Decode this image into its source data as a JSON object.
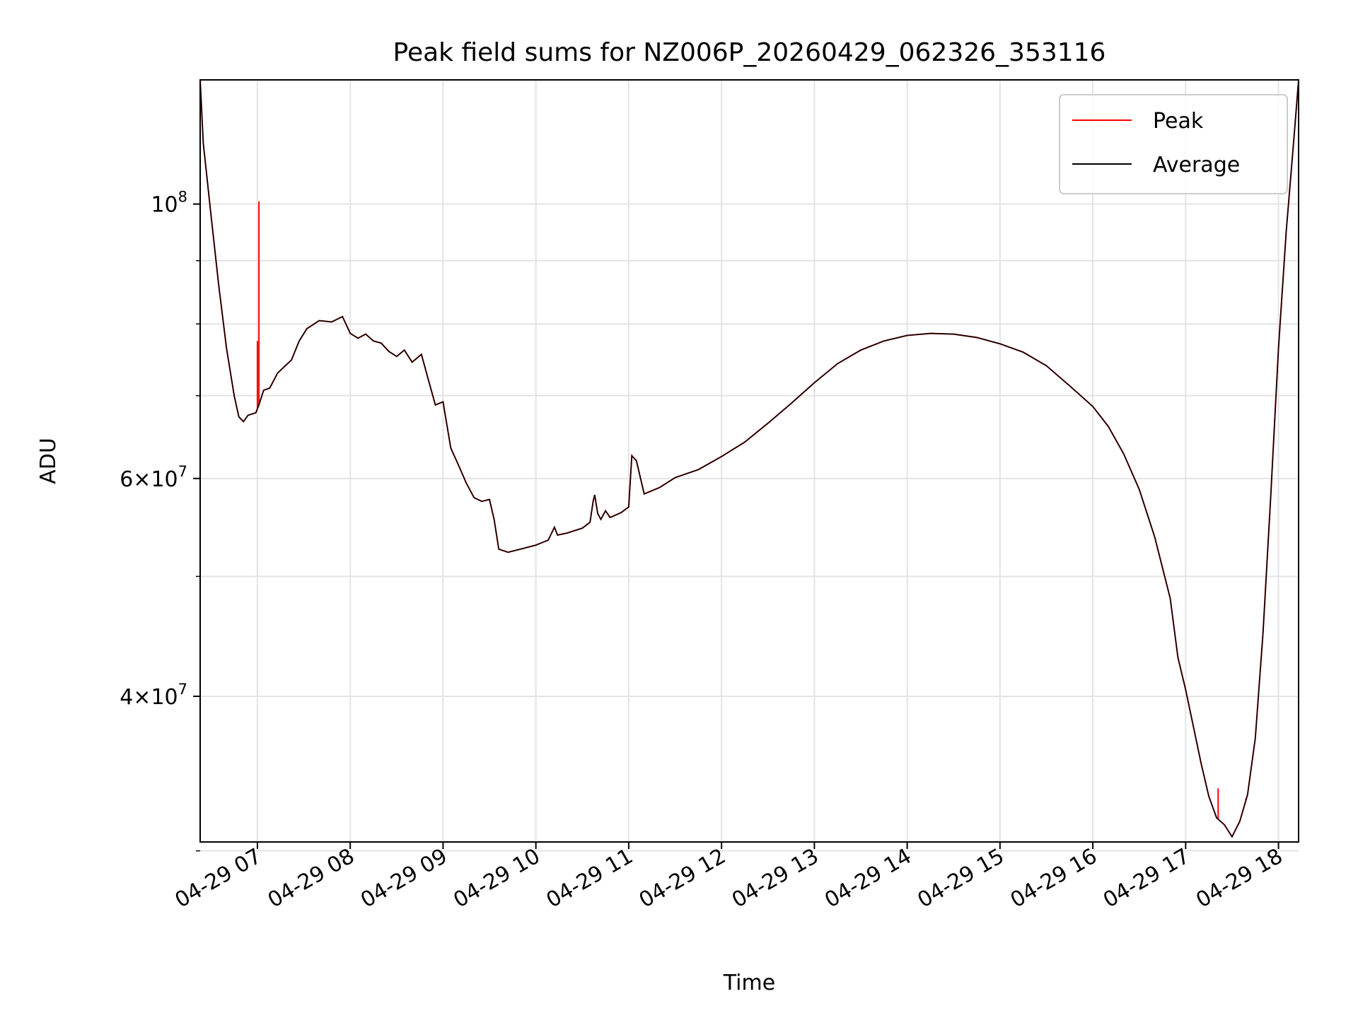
{
  "chart_data": {
    "type": "line",
    "title": "Peak field sums for NZ006P_20260429_062326_353116",
    "xlabel": "Time",
    "ylabel": "ADU",
    "yscale": "log",
    "xlim": [
      "2026-04-29 06:23",
      "2026-04-29 18:13"
    ],
    "ylim": [
      30500000,
      126000000
    ],
    "x_ticks": [
      "04-29 07",
      "04-29 08",
      "04-29 09",
      "04-29 10",
      "04-29 11",
      "04-29 12",
      "04-29 13",
      "04-29 14",
      "04-29 15",
      "04-29 16",
      "04-29 17",
      "04-29 18"
    ],
    "x_tick_times": [
      "2026-04-29 07:00",
      "2026-04-29 08:00",
      "2026-04-29 09:00",
      "2026-04-29 10:00",
      "2026-04-29 11:00",
      "2026-04-29 12:00",
      "2026-04-29 13:00",
      "2026-04-29 14:00",
      "2026-04-29 15:00",
      "2026-04-29 16:00",
      "2026-04-29 17:00",
      "2026-04-29 18:00"
    ],
    "y_ticks": [
      {
        "value": 100000000,
        "mantissa": "",
        "base": "10",
        "exp": "8"
      },
      {
        "value": 60000000,
        "mantissa": "6",
        "base": "10",
        "exp": "7"
      },
      {
        "value": 40000000,
        "mantissa": "4",
        "base": "10",
        "exp": "7"
      }
    ],
    "y_minor_ticks": [
      30000000,
      50000000,
      70000000,
      80000000,
      90000000
    ],
    "grid": true,
    "legend_position": "top-right",
    "series": [
      {
        "name": "Average",
        "color": "#000000",
        "points": [
          [
            "2026-04-29 06:23",
            126000000
          ],
          [
            "2026-04-29 06:25",
            112000000
          ],
          [
            "2026-04-29 06:30",
            98000000
          ],
          [
            "2026-04-29 06:35",
            86000000
          ],
          [
            "2026-04-29 06:40",
            76500000
          ],
          [
            "2026-04-29 06:45",
            70000000
          ],
          [
            "2026-04-29 06:48",
            67300000
          ],
          [
            "2026-04-29 06:51",
            66700000
          ],
          [
            "2026-04-29 06:54",
            67500000
          ],
          [
            "2026-04-29 06:59",
            67800000
          ],
          [
            "2026-04-29 07:01",
            68800000
          ],
          [
            "2026-04-29 07:04",
            70700000
          ],
          [
            "2026-04-29 07:08",
            71000000
          ],
          [
            "2026-04-29 07:13",
            73000000
          ],
          [
            "2026-04-29 07:18",
            74000000
          ],
          [
            "2026-04-29 07:22",
            74800000
          ],
          [
            "2026-04-29 07:27",
            77500000
          ],
          [
            "2026-04-29 07:32",
            79300000
          ],
          [
            "2026-04-29 07:40",
            80500000
          ],
          [
            "2026-04-29 07:48",
            80300000
          ],
          [
            "2026-04-29 07:55",
            81100000
          ],
          [
            "2026-04-29 08:00",
            78600000
          ],
          [
            "2026-04-29 08:05",
            77900000
          ],
          [
            "2026-04-29 08:10",
            78500000
          ],
          [
            "2026-04-29 08:15",
            77500000
          ],
          [
            "2026-04-29 08:20",
            77200000
          ],
          [
            "2026-04-29 08:25",
            76000000
          ],
          [
            "2026-04-29 08:30",
            75300000
          ],
          [
            "2026-04-29 08:35",
            76200000
          ],
          [
            "2026-04-29 08:40",
            74500000
          ],
          [
            "2026-04-29 08:46",
            75600000
          ],
          [
            "2026-04-29 08:50",
            72500000
          ],
          [
            "2026-04-29 08:55",
            68800000
          ],
          [
            "2026-04-29 09:00",
            69200000
          ],
          [
            "2026-04-29 09:05",
            63500000
          ],
          [
            "2026-04-29 09:10",
            61500000
          ],
          [
            "2026-04-29 09:15",
            59500000
          ],
          [
            "2026-04-29 09:20",
            57900000
          ],
          [
            "2026-04-29 09:25",
            57500000
          ],
          [
            "2026-04-29 09:30",
            57700000
          ],
          [
            "2026-04-29 09:33",
            55600000
          ],
          [
            "2026-04-29 09:36",
            52600000
          ],
          [
            "2026-04-29 09:42",
            52300000
          ],
          [
            "2026-04-29 09:50",
            52600000
          ],
          [
            "2026-04-29 10:00",
            53000000
          ],
          [
            "2026-04-29 10:08",
            53500000
          ],
          [
            "2026-04-29 10:12",
            54800000
          ],
          [
            "2026-04-29 10:14",
            54000000
          ],
          [
            "2026-04-29 10:20",
            54200000
          ],
          [
            "2026-04-29 10:30",
            54700000
          ],
          [
            "2026-04-29 10:35",
            55300000
          ],
          [
            "2026-04-29 10:37",
            57500000
          ],
          [
            "2026-04-29 10:38",
            58200000
          ],
          [
            "2026-04-29 10:40",
            56200000
          ],
          [
            "2026-04-29 10:42",
            55600000
          ],
          [
            "2026-04-29 10:45",
            56500000
          ],
          [
            "2026-04-29 10:48",
            55800000
          ],
          [
            "2026-04-29 10:55",
            56300000
          ],
          [
            "2026-04-29 11:00",
            56900000
          ],
          [
            "2026-04-29 11:02",
            62600000
          ],
          [
            "2026-04-29 11:05",
            62000000
          ],
          [
            "2026-04-29 11:10",
            58300000
          ],
          [
            "2026-04-29 11:20",
            59000000
          ],
          [
            "2026-04-29 11:30",
            60100000
          ],
          [
            "2026-04-29 11:45",
            61000000
          ],
          [
            "2026-04-29 12:00",
            62500000
          ],
          [
            "2026-04-29 12:15",
            64200000
          ],
          [
            "2026-04-29 12:30",
            66500000
          ],
          [
            "2026-04-29 12:45",
            69000000
          ],
          [
            "2026-04-29 13:00",
            71700000
          ],
          [
            "2026-04-29 13:15",
            74300000
          ],
          [
            "2026-04-29 13:30",
            76200000
          ],
          [
            "2026-04-29 13:45",
            77500000
          ],
          [
            "2026-04-29 14:00",
            78300000
          ],
          [
            "2026-04-29 14:15",
            78600000
          ],
          [
            "2026-04-29 14:30",
            78500000
          ],
          [
            "2026-04-29 14:45",
            78000000
          ],
          [
            "2026-04-29 15:00",
            77100000
          ],
          [
            "2026-04-29 15:15",
            75900000
          ],
          [
            "2026-04-29 15:30",
            74000000
          ],
          [
            "2026-04-29 15:45",
            71300000
          ],
          [
            "2026-04-29 16:00",
            68600000
          ],
          [
            "2026-04-29 16:10",
            66100000
          ],
          [
            "2026-04-29 16:20",
            62800000
          ],
          [
            "2026-04-29 16:30",
            58800000
          ],
          [
            "2026-04-29 16:40",
            53800000
          ],
          [
            "2026-04-29 16:50",
            48000000
          ],
          [
            "2026-04-29 16:55",
            43000000
          ],
          [
            "2026-04-29 17:00",
            40500000
          ],
          [
            "2026-04-29 17:05",
            37800000
          ],
          [
            "2026-04-29 17:10",
            35300000
          ],
          [
            "2026-04-29 17:15",
            33200000
          ],
          [
            "2026-04-29 17:20",
            31900000
          ],
          [
            "2026-04-29 17:25",
            31500000
          ],
          [
            "2026-04-29 17:30",
            30800000
          ],
          [
            "2026-04-29 17:35",
            31700000
          ],
          [
            "2026-04-29 17:40",
            33300000
          ],
          [
            "2026-04-29 17:45",
            37000000
          ],
          [
            "2026-04-29 17:50",
            45000000
          ],
          [
            "2026-04-29 17:55",
            58000000
          ],
          [
            "2026-04-29 18:00",
            76500000
          ],
          [
            "2026-04-29 18:05",
            95000000
          ],
          [
            "2026-04-29 18:10",
            113000000
          ],
          [
            "2026-04-29 18:13",
            126000000
          ]
        ]
      },
      {
        "name": "Peak",
        "color": "#ff0000",
        "spikes": [
          [
            "2026-04-29 07:00",
            77500000
          ],
          [
            "2026-04-29 07:01",
            100500000
          ],
          [
            "2026-04-29 17:21",
            33700000
          ],
          [
            "2026-04-29 17:39",
            33100000
          ]
        ]
      }
    ]
  }
}
